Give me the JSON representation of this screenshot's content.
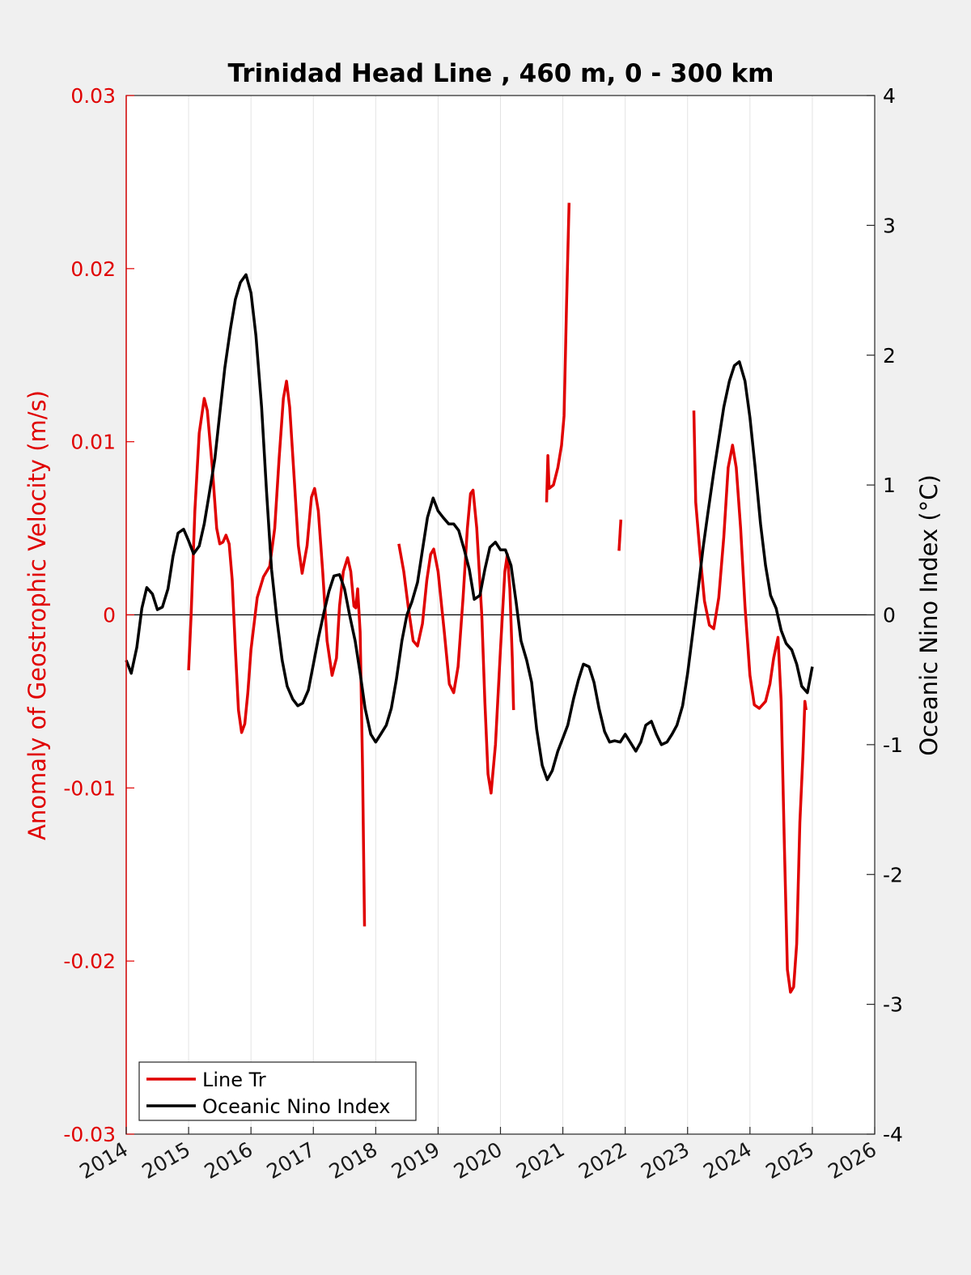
{
  "chart_data": {
    "type": "line",
    "title": "Trinidad Head Line , 460 m, 0 - 300 km",
    "ylabel_left": "Anomaly of Geostrophic Velocity (m/s)",
    "ylabel_right": "Oceanic Nino Index (°C)",
    "xlim": [
      2014,
      2026
    ],
    "ylim_left": [
      -0.03,
      0.03
    ],
    "ylim_right": [
      -4,
      4
    ],
    "x_ticks": [
      "2014",
      "2015",
      "2016",
      "2017",
      "2018",
      "2019",
      "2020",
      "2021",
      "2022",
      "2023",
      "2024",
      "2025",
      "2026"
    ],
    "y_ticks_left": [
      "-0.03",
      "-0.02",
      "-0.01",
      "0",
      "0.01",
      "0.02",
      "0.03"
    ],
    "y_ticks_right": [
      "-4",
      "-3",
      "-2",
      "-1",
      "0",
      "1",
      "2",
      "3",
      "4"
    ],
    "grid": "vertical",
    "zero_line": true,
    "legend_position": "bottom-left",
    "colors": {
      "line_tr": "#e00000",
      "oni": "#000000",
      "plot_bg": "#ffffff",
      "figure_bg": "#f0f0f0"
    },
    "series": [
      {
        "name": "Line Tr",
        "axis": "left",
        "segments": [
          [
            [
              2015.0,
              -0.0032
            ],
            [
              2015.04,
              0.0
            ],
            [
              2015.1,
              0.006
            ],
            [
              2015.17,
              0.0105
            ],
            [
              2015.25,
              0.0125
            ],
            [
              2015.3,
              0.0118
            ],
            [
              2015.38,
              0.0085
            ],
            [
              2015.45,
              0.005
            ],
            [
              2015.5,
              0.0041
            ],
            [
              2015.55,
              0.0042
            ],
            [
              2015.6,
              0.0046
            ],
            [
              2015.65,
              0.0041
            ],
            [
              2015.7,
              0.002
            ],
            [
              2015.75,
              -0.002
            ],
            [
              2015.8,
              -0.0055
            ],
            [
              2015.85,
              -0.0068
            ],
            [
              2015.9,
              -0.0063
            ],
            [
              2015.95,
              -0.0045
            ],
            [
              2016.0,
              -0.002
            ],
            [
              2016.1,
              0.001
            ],
            [
              2016.2,
              0.0022
            ],
            [
              2016.3,
              0.0028
            ],
            [
              2016.38,
              0.005
            ],
            [
              2016.45,
              0.009
            ],
            [
              2016.52,
              0.0125
            ],
            [
              2016.57,
              0.0135
            ],
            [
              2016.62,
              0.012
            ],
            [
              2016.7,
              0.0075
            ],
            [
              2016.76,
              0.004
            ],
            [
              2016.82,
              0.0024
            ],
            [
              2016.9,
              0.004
            ],
            [
              2016.97,
              0.0068
            ],
            [
              2017.02,
              0.0073
            ],
            [
              2017.08,
              0.006
            ],
            [
              2017.15,
              0.0025
            ],
            [
              2017.22,
              -0.0015
            ],
            [
              2017.3,
              -0.0035
            ],
            [
              2017.37,
              -0.0025
            ],
            [
              2017.42,
              0.0005
            ],
            [
              2017.48,
              0.0025
            ],
            [
              2017.55,
              0.0033
            ],
            [
              2017.6,
              0.0025
            ],
            [
              2017.65,
              0.0005
            ],
            [
              2017.68,
              0.0004
            ],
            [
              2017.71,
              0.0015
            ],
            [
              2017.75,
              -0.001
            ],
            [
              2017.79,
              -0.009
            ],
            [
              2017.82,
              -0.018
            ]
          ],
          [
            [
              2018.37,
              0.0041
            ],
            [
              2018.45,
              0.0025
            ],
            [
              2018.52,
              0.0005
            ],
            [
              2018.6,
              -0.0015
            ],
            [
              2018.67,
              -0.0018
            ],
            [
              2018.75,
              -0.0005
            ],
            [
              2018.82,
              0.002
            ],
            [
              2018.88,
              0.0035
            ],
            [
              2018.93,
              0.0038
            ],
            [
              2019.0,
              0.0025
            ],
            [
              2019.1,
              -0.001
            ],
            [
              2019.18,
              -0.004
            ],
            [
              2019.25,
              -0.0045
            ],
            [
              2019.32,
              -0.003
            ],
            [
              2019.4,
              0.001
            ],
            [
              2019.47,
              0.005
            ],
            [
              2019.52,
              0.007
            ],
            [
              2019.56,
              0.0072
            ],
            [
              2019.62,
              0.005
            ],
            [
              2019.7,
              0.0
            ],
            [
              2019.75,
              -0.005
            ],
            [
              2019.8,
              -0.0092
            ],
            [
              2019.85,
              -0.0103
            ],
            [
              2019.92,
              -0.0075
            ],
            [
              2020.0,
              -0.002
            ],
            [
              2020.07,
              0.0025
            ],
            [
              2020.11,
              0.0035
            ],
            [
              2020.15,
              0.0015
            ],
            [
              2020.19,
              -0.0025
            ],
            [
              2020.21,
              -0.0055
            ]
          ],
          [
            [
              2020.74,
              0.0065
            ],
            [
              2020.76,
              0.0092
            ],
            [
              2020.78,
              0.0073
            ],
            [
              2020.85,
              0.0075
            ],
            [
              2020.92,
              0.0085
            ],
            [
              2020.98,
              0.0098
            ],
            [
              2021.02,
              0.0115
            ],
            [
              2021.06,
              0.018
            ],
            [
              2021.1,
              0.0238
            ]
          ],
          [
            [
              2021.9,
              0.0037
            ],
            [
              2021.93,
              0.0055
            ]
          ],
          [
            [
              2023.1,
              0.0118
            ],
            [
              2023.13,
              0.0065
            ],
            [
              2023.2,
              0.0035
            ],
            [
              2023.27,
              0.0008
            ],
            [
              2023.35,
              -0.0006
            ],
            [
              2023.42,
              -0.0008
            ],
            [
              2023.5,
              0.001
            ],
            [
              2023.58,
              0.0045
            ],
            [
              2023.65,
              0.0085
            ],
            [
              2023.72,
              0.0098
            ],
            [
              2023.78,
              0.0085
            ],
            [
              2023.85,
              0.005
            ],
            [
              2023.92,
              0.0005
            ],
            [
              2024.0,
              -0.0035
            ],
            [
              2024.07,
              -0.0052
            ],
            [
              2024.15,
              -0.0054
            ],
            [
              2024.25,
              -0.005
            ],
            [
              2024.32,
              -0.004
            ],
            [
              2024.38,
              -0.0025
            ],
            [
              2024.45,
              -0.0013
            ],
            [
              2024.5,
              -0.005
            ],
            [
              2024.55,
              -0.013
            ],
            [
              2024.6,
              -0.0205
            ],
            [
              2024.65,
              -0.0218
            ],
            [
              2024.7,
              -0.0215
            ],
            [
              2024.75,
              -0.019
            ],
            [
              2024.8,
              -0.012
            ],
            [
              2024.85,
              -0.008
            ],
            [
              2024.88,
              -0.005
            ],
            [
              2024.9,
              -0.0055
            ]
          ]
        ]
      },
      {
        "name": "Oceanic Nino Index",
        "axis": "right",
        "segments": [
          [
            [
              2014.0,
              -0.35
            ],
            [
              2014.08,
              -0.45
            ],
            [
              2014.17,
              -0.25
            ],
            [
              2014.25,
              0.05
            ],
            [
              2014.33,
              0.21
            ],
            [
              2014.42,
              0.16
            ],
            [
              2014.5,
              0.04
            ],
            [
              2014.58,
              0.06
            ],
            [
              2014.67,
              0.2
            ],
            [
              2014.75,
              0.45
            ],
            [
              2014.83,
              0.63
            ],
            [
              2014.92,
              0.66
            ],
            [
              2015.0,
              0.57
            ],
            [
              2015.08,
              0.47
            ],
            [
              2015.17,
              0.53
            ],
            [
              2015.25,
              0.7
            ],
            [
              2015.33,
              0.93
            ],
            [
              2015.42,
              1.2
            ],
            [
              2015.5,
              1.55
            ],
            [
              2015.58,
              1.9
            ],
            [
              2015.67,
              2.2
            ],
            [
              2015.75,
              2.43
            ],
            [
              2015.83,
              2.56
            ],
            [
              2015.92,
              2.62
            ],
            [
              2016.0,
              2.48
            ],
            [
              2016.08,
              2.15
            ],
            [
              2016.17,
              1.6
            ],
            [
              2016.25,
              0.95
            ],
            [
              2016.33,
              0.35
            ],
            [
              2016.42,
              -0.05
            ],
            [
              2016.5,
              -0.35
            ],
            [
              2016.58,
              -0.55
            ],
            [
              2016.67,
              -0.65
            ],
            [
              2016.75,
              -0.7
            ],
            [
              2016.83,
              -0.68
            ],
            [
              2016.92,
              -0.58
            ],
            [
              2017.0,
              -0.38
            ],
            [
              2017.08,
              -0.18
            ],
            [
              2017.17,
              0.02
            ],
            [
              2017.25,
              0.18
            ],
            [
              2017.33,
              0.3
            ],
            [
              2017.42,
              0.31
            ],
            [
              2017.5,
              0.2
            ],
            [
              2017.58,
              0.0
            ],
            [
              2017.67,
              -0.2
            ],
            [
              2017.75,
              -0.45
            ],
            [
              2017.83,
              -0.72
            ],
            [
              2017.92,
              -0.92
            ],
            [
              2018.0,
              -0.98
            ],
            [
              2018.08,
              -0.92
            ],
            [
              2018.17,
              -0.85
            ],
            [
              2018.25,
              -0.72
            ],
            [
              2018.33,
              -0.5
            ],
            [
              2018.42,
              -0.2
            ],
            [
              2018.5,
              0.0
            ],
            [
              2018.58,
              0.1
            ],
            [
              2018.67,
              0.25
            ],
            [
              2018.75,
              0.5
            ],
            [
              2018.83,
              0.75
            ],
            [
              2018.92,
              0.9
            ],
            [
              2019.0,
              0.8
            ],
            [
              2019.08,
              0.75
            ],
            [
              2019.17,
              0.7
            ],
            [
              2019.25,
              0.7
            ],
            [
              2019.33,
              0.65
            ],
            [
              2019.42,
              0.5
            ],
            [
              2019.5,
              0.35
            ],
            [
              2019.58,
              0.12
            ],
            [
              2019.67,
              0.15
            ],
            [
              2019.75,
              0.35
            ],
            [
              2019.83,
              0.52
            ],
            [
              2019.92,
              0.56
            ],
            [
              2020.0,
              0.5
            ],
            [
              2020.08,
              0.5
            ],
            [
              2020.17,
              0.38
            ],
            [
              2020.25,
              0.1
            ],
            [
              2020.33,
              -0.2
            ],
            [
              2020.42,
              -0.35
            ],
            [
              2020.5,
              -0.52
            ],
            [
              2020.58,
              -0.88
            ],
            [
              2020.67,
              -1.16
            ],
            [
              2020.75,
              -1.27
            ],
            [
              2020.83,
              -1.2
            ],
            [
              2020.92,
              -1.05
            ],
            [
              2021.0,
              -0.95
            ],
            [
              2021.08,
              -0.85
            ],
            [
              2021.17,
              -0.65
            ],
            [
              2021.25,
              -0.5
            ],
            [
              2021.33,
              -0.38
            ],
            [
              2021.42,
              -0.4
            ],
            [
              2021.5,
              -0.52
            ],
            [
              2021.58,
              -0.72
            ],
            [
              2021.67,
              -0.9
            ],
            [
              2021.75,
              -0.98
            ],
            [
              2021.83,
              -0.97
            ],
            [
              2021.92,
              -0.98
            ],
            [
              2022.0,
              -0.92
            ],
            [
              2022.08,
              -0.98
            ],
            [
              2022.17,
              -1.05
            ],
            [
              2022.25,
              -0.98
            ],
            [
              2022.33,
              -0.85
            ],
            [
              2022.42,
              -0.82
            ],
            [
              2022.5,
              -0.92
            ],
            [
              2022.58,
              -1.0
            ],
            [
              2022.67,
              -0.98
            ],
            [
              2022.75,
              -0.92
            ],
            [
              2022.83,
              -0.85
            ],
            [
              2022.92,
              -0.7
            ],
            [
              2023.0,
              -0.45
            ],
            [
              2023.08,
              -0.15
            ],
            [
              2023.17,
              0.2
            ],
            [
              2023.25,
              0.52
            ],
            [
              2023.33,
              0.8
            ],
            [
              2023.42,
              1.1
            ],
            [
              2023.5,
              1.35
            ],
            [
              2023.58,
              1.6
            ],
            [
              2023.67,
              1.8
            ],
            [
              2023.75,
              1.92
            ],
            [
              2023.83,
              1.95
            ],
            [
              2023.92,
              1.8
            ],
            [
              2024.0,
              1.52
            ],
            [
              2024.08,
              1.15
            ],
            [
              2024.17,
              0.7
            ],
            [
              2024.25,
              0.38
            ],
            [
              2024.33,
              0.15
            ],
            [
              2024.42,
              0.05
            ],
            [
              2024.5,
              -0.12
            ],
            [
              2024.58,
              -0.22
            ],
            [
              2024.67,
              -0.27
            ],
            [
              2024.75,
              -0.38
            ],
            [
              2024.83,
              -0.55
            ],
            [
              2024.92,
              -0.6
            ],
            [
              2025.0,
              -0.4
            ]
          ]
        ]
      }
    ]
  }
}
